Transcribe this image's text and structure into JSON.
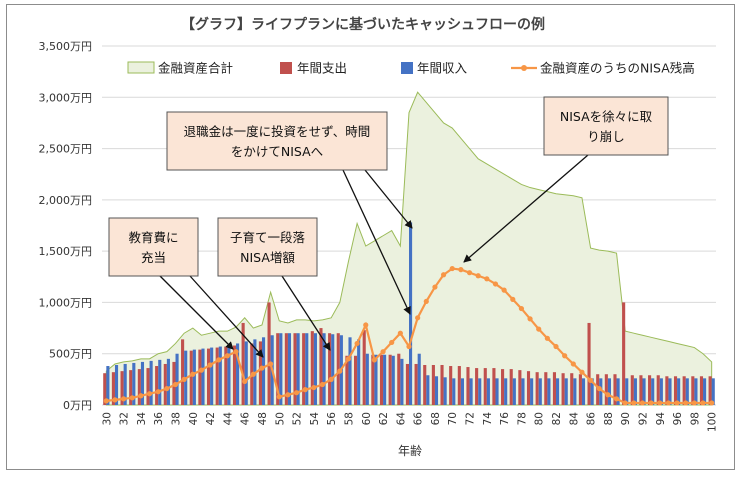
{
  "chart_data": {
    "type": "combo",
    "title": "【グラフ】ライフプランに基づいたキャッシュフローの例",
    "xlabel": "年齢",
    "ylabel": "",
    "ylim": [
      0,
      3500
    ],
    "y_ticks": [
      "0万円",
      "500万円",
      "1,000万円",
      "1,500万円",
      "2,000万円",
      "2,500万円",
      "3,000万円",
      "3,500万円"
    ],
    "x_tick_labels": [
      "30",
      "32",
      "34",
      "36",
      "38",
      "40",
      "42",
      "44",
      "46",
      "48",
      "50",
      "52",
      "54",
      "56",
      "58",
      "60",
      "62",
      "64",
      "66",
      "68",
      "70",
      "72",
      "74",
      "76",
      "78",
      "80",
      "82",
      "84",
      "86",
      "88",
      "90",
      "92",
      "94",
      "96",
      "98",
      "100"
    ],
    "ages": [
      30,
      31,
      32,
      33,
      34,
      35,
      36,
      37,
      38,
      39,
      40,
      41,
      42,
      43,
      44,
      45,
      46,
      47,
      48,
      49,
      50,
      51,
      52,
      53,
      54,
      55,
      56,
      57,
      58,
      59,
      60,
      61,
      62,
      63,
      64,
      65,
      66,
      67,
      68,
      69,
      70,
      71,
      72,
      73,
      74,
      75,
      76,
      77,
      78,
      79,
      80,
      81,
      82,
      83,
      84,
      85,
      86,
      87,
      88,
      89,
      90,
      91,
      92,
      93,
      94,
      95,
      96,
      97,
      98,
      99,
      100
    ],
    "series": [
      {
        "name": "金融資産合計",
        "type": "area",
        "color": "#ebf1de",
        "values": [
          330,
          400,
          420,
          430,
          450,
          450,
          500,
          520,
          600,
          700,
          750,
          680,
          700,
          720,
          720,
          760,
          850,
          750,
          780,
          1100,
          820,
          800,
          830,
          830,
          820,
          830,
          850,
          1000,
          1400,
          1770,
          1550,
          1600,
          1650,
          1700,
          1550,
          2850,
          3050,
          2950,
          2850,
          2750,
          2700,
          2600,
          2500,
          2400,
          2350,
          2300,
          2250,
          2200,
          2150,
          2120,
          2100,
          2080,
          2060,
          2050,
          2040,
          2020,
          1530,
          1510,
          1500,
          1480,
          720,
          700,
          680,
          660,
          640,
          620,
          600,
          580,
          560,
          500,
          420
        ]
      },
      {
        "name": "年間支出",
        "type": "bar",
        "color": "#c0504d",
        "values": [
          310,
          320,
          330,
          340,
          350,
          360,
          380,
          400,
          420,
          640,
          530,
          540,
          550,
          560,
          570,
          580,
          800,
          600,
          620,
          1000,
          700,
          700,
          700,
          700,
          720,
          750,
          700,
          700,
          480,
          480,
          730,
          490,
          490,
          490,
          500,
          400,
          400,
          390,
          390,
          390,
          380,
          380,
          370,
          360,
          360,
          360,
          350,
          350,
          340,
          330,
          320,
          320,
          320,
          310,
          310,
          300,
          800,
          300,
          300,
          300,
          1000,
          290,
          290,
          290,
          290,
          280,
          280,
          280,
          280,
          280,
          280
        ]
      },
      {
        "name": "年間収入",
        "type": "bar",
        "color": "#4472c4",
        "values": [
          380,
          390,
          400,
          410,
          420,
          430,
          440,
          450,
          500,
          530,
          540,
          550,
          560,
          570,
          580,
          600,
          620,
          640,
          660,
          680,
          700,
          700,
          700,
          700,
          700,
          700,
          690,
          680,
          660,
          640,
          500,
          490,
          490,
          480,
          450,
          1780,
          500,
          290,
          280,
          270,
          260,
          260,
          260,
          260,
          260,
          260,
          260,
          260,
          260,
          260,
          260,
          260,
          260,
          260,
          260,
          260,
          260,
          260,
          260,
          260,
          260,
          260,
          260,
          260,
          260,
          260,
          260,
          260,
          260,
          260,
          260
        ]
      },
      {
        "name": "金融資産のうちのNISA残高",
        "type": "line",
        "color": "#f79646",
        "values": [
          40,
          50,
          60,
          70,
          90,
          110,
          130,
          160,
          200,
          250,
          300,
          340,
          390,
          440,
          480,
          520,
          230,
          300,
          360,
          400,
          80,
          100,
          120,
          150,
          170,
          200,
          250,
          330,
          450,
          600,
          780,
          440,
          520,
          610,
          700,
          570,
          850,
          1010,
          1150,
          1270,
          1330,
          1320,
          1290,
          1260,
          1230,
          1180,
          1120,
          1030,
          940,
          840,
          740,
          650,
          570,
          480,
          400,
          320,
          240,
          160,
          100,
          60,
          20,
          20,
          20,
          20,
          20,
          20,
          20,
          20,
          20,
          20,
          20
        ]
      }
    ],
    "annotations": [
      {
        "lines": [
          "退職金は一度に投資をせず、時間",
          "をかけてNISAへ"
        ]
      },
      {
        "lines": [
          "NISAを徐々に取",
          "り崩し"
        ]
      },
      {
        "lines": [
          "教育費に",
          "充当"
        ]
      },
      {
        "lines": [
          "子育て一段落",
          "NISA増額"
        ]
      }
    ]
  }
}
